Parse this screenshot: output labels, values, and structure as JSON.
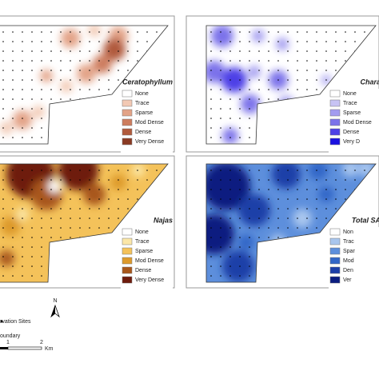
{
  "panels": [
    {
      "title": "Ceratophyllum",
      "legend": [
        "None",
        "Trace",
        "Sparse",
        "Mod Dense",
        "Dense",
        "Very Dense"
      ],
      "colors": [
        "#ffffff",
        "#f2c9b4",
        "#e3a387",
        "#cd7d5e",
        "#b05a3c",
        "#8a3a22"
      ]
    },
    {
      "title": "Chara",
      "legend": [
        "None",
        "Trace",
        "Sparse",
        "Mod Dense",
        "Dense",
        "Very D"
      ],
      "colors": [
        "#ffffff",
        "#c7c3f4",
        "#a39cf0",
        "#7c72ea",
        "#4e41e6",
        "#1a10e0"
      ]
    },
    {
      "title": "Najas",
      "legend": [
        "None",
        "Trace",
        "Sparse",
        "Mod Dense",
        "Dense",
        "Very Dense"
      ],
      "colors": [
        "#ffffff",
        "#fbe7a8",
        "#f4c25a",
        "#dd9a2c",
        "#a8571a",
        "#6e1b0c"
      ]
    },
    {
      "title": "Total SA",
      "legend": [
        "Non",
        "Trac",
        "Spar",
        "Mod",
        "Den",
        "Ver"
      ],
      "colors": [
        "#ffffff",
        "#a9c6ee",
        "#5d8fdc",
        "#3266c7",
        "#1c3fa8",
        "#0a1d80"
      ]
    }
  ],
  "footer": {
    "sites": "rvation Sites",
    "boundary": "oundary",
    "north": "N",
    "scale1": "1",
    "scale2": "2",
    "unit": "Km"
  }
}
